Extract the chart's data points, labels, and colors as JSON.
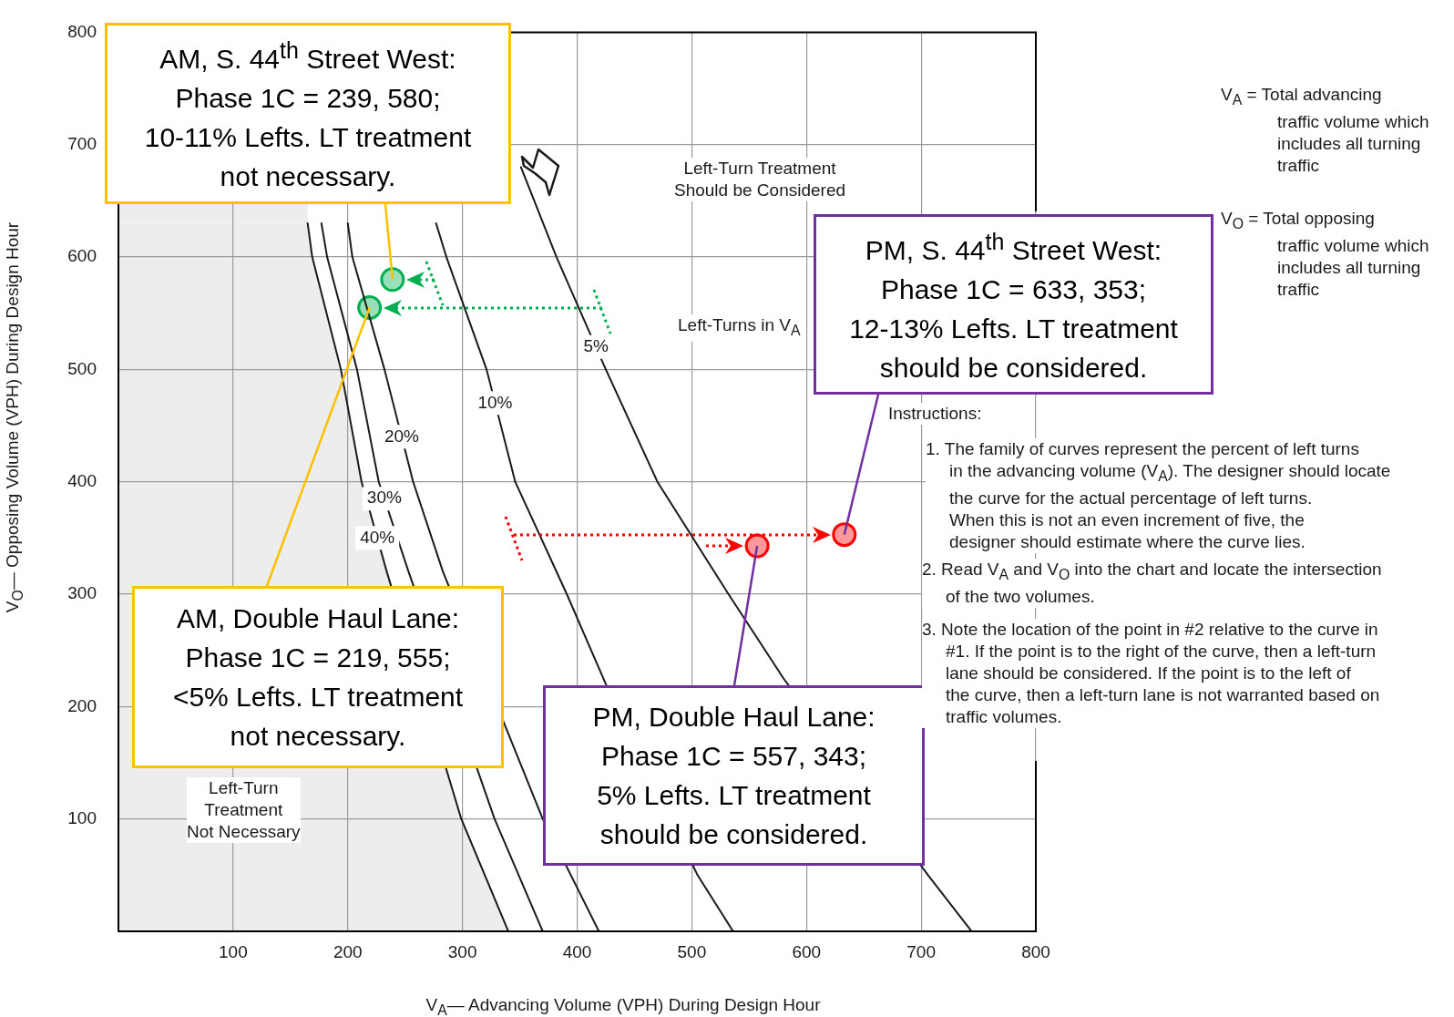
{
  "chart_data": {
    "type": "line",
    "xlabel": "V$_{A}$— Advancing Volume (VPH) During Design Hour",
    "ylabel": "V$_{O}$— Opposing Volume (VPH) During Design Hour",
    "xlim": [
      0,
      800
    ],
    "xticks": [
      100,
      200,
      300,
      400,
      500,
      600,
      700,
      800
    ],
    "ylim": [
      0,
      800
    ],
    "yticks": [
      100,
      200,
      300,
      400,
      500,
      600,
      700,
      800
    ],
    "grid": true,
    "legend": false,
    "series": [
      {
        "name": "40%",
        "color": "#1a1a1a",
        "marker": "none",
        "x": [
          165,
          169,
          194,
          212,
          234,
          299,
          340
        ],
        "values": [
          630,
          600,
          500,
          400,
          320,
          100,
          0
        ]
      },
      {
        "name": "30%",
        "color": "#1a1a1a",
        "marker": "none",
        "x": [
          177,
          182,
          208,
          227,
          253,
          328,
          370
        ],
        "values": [
          630,
          600,
          500,
          400,
          320,
          100,
          0
        ]
      },
      {
        "name": "20%",
        "color": "#1a1a1a",
        "marker": "none",
        "x": [
          200,
          204,
          232,
          257,
          283,
          370,
          419
        ],
        "values": [
          630,
          600,
          500,
          400,
          320,
          100,
          0
        ]
      },
      {
        "name": "10%",
        "color": "#1a1a1a",
        "marker": "none",
        "x": [
          277,
          286,
          321,
          346,
          391,
          425,
          505,
          536
        ],
        "values": [
          630,
          600,
          500,
          400,
          300,
          220,
          50,
          0
        ]
      },
      {
        "name": "5%",
        "color": "#1a1a1a",
        "marker": "none",
        "x": [
          351,
          382,
          425,
          470,
          532,
          580,
          706,
          744
        ],
        "values": [
          680,
          600,
          500,
          400,
          300,
          225,
          50,
          0
        ]
      },
      {
        "type": "scatter",
        "color": "#00b050",
        "marker": "circle",
        "x": [
          239,
          219
        ],
        "values": [
          580,
          555
        ]
      },
      {
        "type": "scatter",
        "color": "#ff0000",
        "marker": "circle",
        "x": [
          633,
          557
        ],
        "values": [
          353,
          343
        ]
      }
    ],
    "annotations": [
      {
        "text": "AM, S. 44$^{th}$ Street West:\nPhase 1C = 239, 580;\n10-11% Lefts. LT treatment\nnot necessary.",
        "x": 239,
        "y": 580
      },
      {
        "text": "AM, Double Haul Lane:\nPhase 1C = 219, 555;\n<5% Lefts. LT treatment\nnot necessary.",
        "x": 219,
        "y": 555
      },
      {
        "text": "PM, S. 44$^{th}$ Street West:\nPhase 1C = 633, 353;\n12-13% Lefts. LT treatment\nshould be considered.",
        "x": 633,
        "y": 353
      },
      {
        "text": "PM, Double Haul Lane:\nPhase 1C = 557, 343;\n5% Lefts. LT treatment\nshould be considered.",
        "x": 557,
        "y": 343
      },
      "Left-Turn Treatment\nShould be Considered",
      "Left-Turns in V$_{A}$",
      "Left-Turn\nTreatment\nNot Necessary",
      "V$_{A}$ = Total advancing\ntraffic volume which\nincludes all turning\ntraffic",
      "V$_{O}$ = Total opposing\ntraffic volume which\nincludes all turning\ntraffic",
      "Instructions:",
      "1. The family of curves represent the percent of left turns\nin the advancing volume (V$_{A}$). The designer should locate\nthe curve for the actual percentage of left turns.\nWhen this is not an even increment of five, the\ndesigner should estimate where the curve lies.",
      "2. Read V$_{A}$ and V$_{O}$ into the chart and locate the intersection\nof the two volumes.",
      "3. Note the location of the point in #2 relative to the curve in\n#1. If the point is to the right of the curve, then a left-turn\nlane should be considered. If the point is to the left of\nthe curve, then a left-turn lane is not warranted based on\ntraffic volumes."
    ]
  }
}
